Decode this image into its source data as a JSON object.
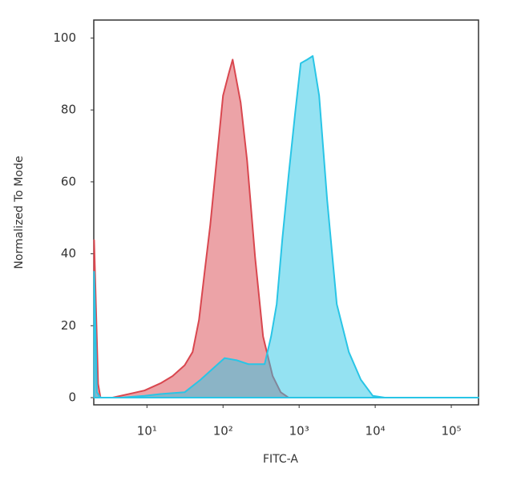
{
  "chart_data": {
    "type": "area",
    "xlabel": "FITC-A",
    "ylabel": "Normalized To Mode",
    "xscale": "log",
    "xlim": [
      2,
      228000
    ],
    "ylim": [
      -2,
      105
    ],
    "xticks": [
      {
        "value": 10,
        "label": "10¹"
      },
      {
        "value": 100,
        "label": "10²"
      },
      {
        "value": 1000,
        "label": "10³"
      },
      {
        "value": 10000,
        "label": "10⁴"
      },
      {
        "value": 100000,
        "label": "10⁵"
      }
    ],
    "yticks": [
      0,
      20,
      40,
      60,
      80,
      100
    ],
    "grid": false,
    "series": [
      {
        "color": "#d9474f",
        "x": [
          2.02,
          2.28,
          2.45,
          3.52,
          5.73,
          9.3,
          15.1,
          21.7,
          31.3,
          39.8,
          48.3,
          57.3,
          67.9,
          82.4,
          100,
          118.5,
          133.7,
          151,
          170.6,
          207,
          264,
          336,
          449,
          573,
          729
        ],
        "values": [
          43.8,
          3.8,
          0,
          0,
          1,
          2,
          4,
          6,
          9,
          12.7,
          21.6,
          35,
          48,
          66,
          84,
          90,
          94,
          88,
          82,
          66,
          39,
          17,
          6,
          1.5,
          0
        ]
      },
      {
        "color": "#29c5e6",
        "x": [
          2.02,
          2.2,
          2.45,
          4.5,
          9.3,
          15.1,
          31.3,
          50.7,
          72.9,
          105,
          151,
          217,
          352,
          428,
          507,
          601,
          729,
          885,
          1050,
          1274,
          1510,
          1833,
          2336,
          3126,
          4500,
          6470,
          9300,
          13370,
          228000
        ],
        "values": [
          35,
          1.5,
          0,
          0,
          0.5,
          1,
          1.5,
          5,
          8,
          11,
          10.4,
          9.3,
          9.3,
          17,
          26,
          44,
          62,
          79,
          93,
          94,
          95,
          84,
          55,
          26,
          12.7,
          5,
          0.5,
          0,
          0
        ]
      }
    ]
  }
}
